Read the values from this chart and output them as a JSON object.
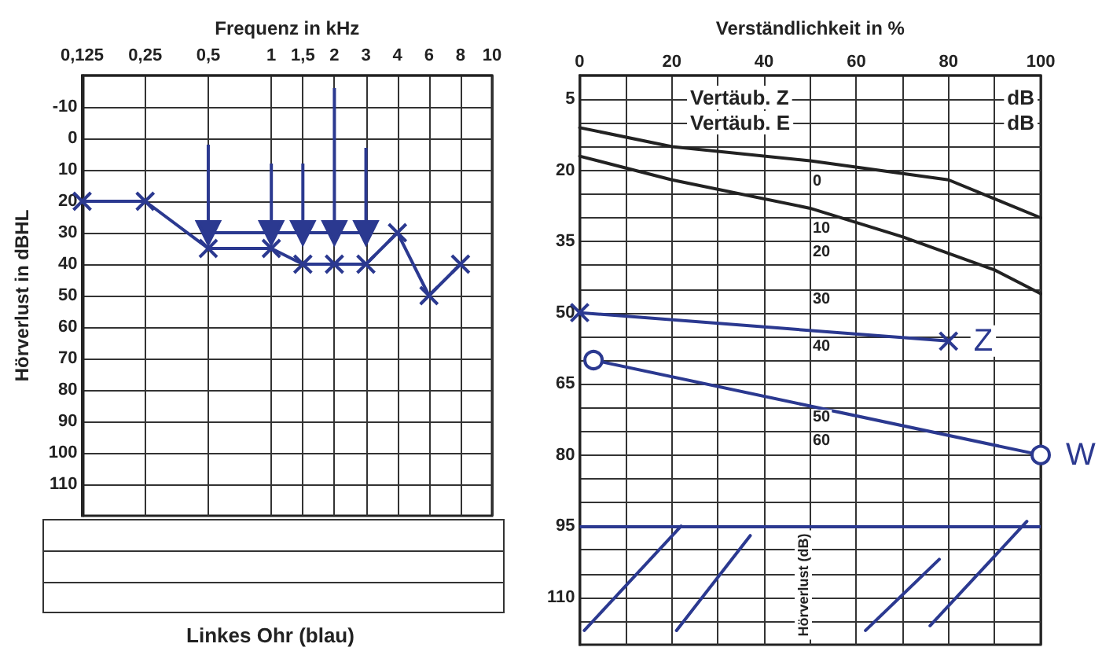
{
  "chart_data": [
    {
      "type": "line",
      "xlabel": "Frequenz in kHz",
      "ylabel": "Hörverlust in dBHL",
      "categories": [
        "0,125",
        null,
        "0,25",
        null,
        "0,5",
        null,
        "1",
        "1,5",
        "2",
        "3",
        "4",
        "6",
        "8",
        "10"
      ],
      "ylim": [
        120,
        -20
      ],
      "yticks": [
        -10,
        0,
        10,
        20,
        30,
        40,
        50,
        60,
        70,
        80,
        90,
        100,
        110
      ],
      "grid": true,
      "annotations": [
        "Linkes Ohr (blau)"
      ],
      "series": [
        {
          "x": [
            "0,125",
            "0,25",
            "0,5",
            "1",
            "1,5",
            "2",
            "3",
            "4",
            "6",
            "8"
          ],
          "values": [
            20,
            20,
            35,
            35,
            40,
            40,
            40,
            30,
            50,
            40
          ],
          "color": "#2b3990",
          "marker": "cross"
        },
        {
          "x": [
            "0,5",
            "1",
            "1,5",
            "2",
            "3"
          ],
          "values": [
            30,
            30,
            30,
            30,
            30
          ],
          "errors": [
            [
              2,
              30
            ],
            [
              8,
              30
            ],
            [
              8,
              30
            ],
            [
              -16,
              30
            ],
            [
              3,
              30
            ]
          ],
          "color": "#2b3990",
          "marker": "triangle"
        }
      ]
    },
    {
      "type": "line",
      "xlabel": "Verständlichkeit in %",
      "xlim": [
        0,
        100
      ],
      "xticks": [
        0,
        {
          "value": 10,
          "label": null
        },
        20,
        {
          "value": 30,
          "label": null
        },
        40,
        {
          "value": 50,
          "label": null
        },
        60,
        {
          "value": 70,
          "label": null
        },
        80,
        {
          "value": 90,
          "label": null
        },
        100
      ],
      "ylim": [
        120,
        0
      ],
      "yticks": [
        5,
        {
          "value": 10,
          "label": null
        },
        {
          "value": 15,
          "label": null
        },
        20,
        {
          "value": 25,
          "label": null
        },
        {
          "value": 30,
          "label": null
        },
        35,
        {
          "value": 40,
          "label": null
        },
        {
          "value": 45,
          "label": null
        },
        50,
        {
          "value": 55,
          "label": null
        },
        {
          "value": 60,
          "label": null
        },
        65,
        {
          "value": 70,
          "label": null
        },
        {
          "value": 75,
          "label": null
        },
        80,
        {
          "value": 85,
          "label": null
        },
        {
          "value": 90,
          "label": null
        },
        95,
        {
          "value": 100,
          "label": null
        },
        {
          "value": 105,
          "label": null
        },
        110,
        {
          "value": 115,
          "label": null
        }
      ],
      "grid": true,
      "marker": "none",
      "ref_lines": [
        {
          "axis": "y",
          "value": 95,
          "color": "#2b3990"
        }
      ],
      "annotations": [
        "Vertäub. Z",
        "dB",
        "Vertäub. E",
        "dB",
        "Hörverlust (dB)",
        "0",
        "10",
        "20",
        "30",
        "40",
        "50",
        "60"
      ],
      "series": [
        {
          "x": [
            0,
            20,
            50,
            80,
            90,
            100
          ],
          "values": [
            11,
            15,
            18,
            22,
            26,
            30
          ],
          "color": "#222222"
        },
        {
          "x": [
            0,
            20,
            50,
            70,
            90,
            100
          ],
          "values": [
            17,
            22,
            28,
            34,
            41,
            46
          ],
          "color": "#222222"
        },
        {
          "name": "Z",
          "x": [
            0,
            80
          ],
          "values": [
            50,
            56
          ],
          "color": "#2b3990",
          "marker": "cross"
        },
        {
          "name": "W",
          "x": [
            3,
            100
          ],
          "values": [
            60,
            80
          ],
          "color": "#2b3990",
          "marker": "circle"
        },
        {
          "x": [
            1,
            22
          ],
          "values": [
            117,
            95
          ],
          "color": "#2b3990"
        },
        {
          "x": [
            21,
            37
          ],
          "values": [
            117,
            97
          ],
          "color": "#2b3990"
        },
        {
          "x": [
            62,
            78
          ],
          "values": [
            117,
            102
          ],
          "color": "#2b3990"
        },
        {
          "x": [
            76,
            97
          ],
          "values": [
            116,
            94
          ],
          "color": "#2b3990"
        }
      ]
    }
  ]
}
